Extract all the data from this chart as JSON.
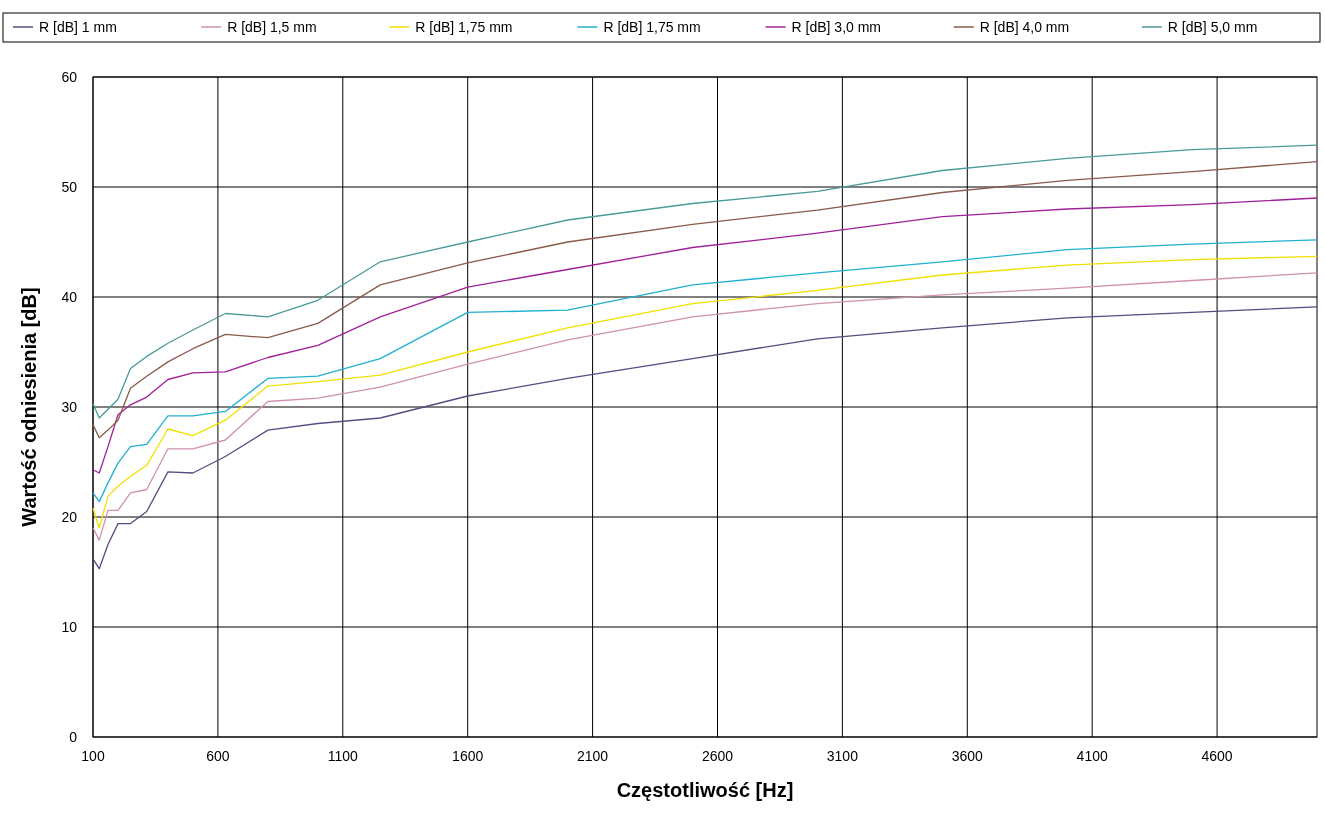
{
  "chart_data": {
    "type": "line",
    "xlabel": "Częstotliwość [Hz]",
    "ylabel": "Wartość odniesienia [dB]",
    "x": [
      100,
      125,
      160,
      200,
      250,
      315,
      400,
      500,
      630,
      800,
      1000,
      1250,
      1600,
      2000,
      2500,
      3000,
      3500,
      4000,
      4500,
      5000
    ],
    "xlim": [
      100,
      5000
    ],
    "xticks": [
      100,
      600,
      1100,
      1600,
      2100,
      2600,
      3100,
      3600,
      4100,
      4600
    ],
    "ylim": [
      0,
      60
    ],
    "yticks": [
      0,
      10,
      20,
      30,
      40,
      50,
      60
    ],
    "grid": true,
    "legend": "top",
    "marker": "none",
    "line_style": "solid",
    "series": [
      {
        "name": "R [dB] 1 mm",
        "color": "#5a4a80",
        "values": [
          16.2,
          15.3,
          17.5,
          19.4,
          19.4,
          20.5,
          24.1,
          24.0,
          25.5,
          27.9,
          28.5,
          29.0,
          31.0,
          32.6,
          34.4,
          36.2,
          37.2,
          38.1,
          38.6,
          39.1
        ]
      },
      {
        "name": "R [dB] 1,5 mm",
        "color": "#d090b0",
        "values": [
          19.0,
          17.9,
          20.6,
          20.6,
          22.2,
          22.5,
          26.2,
          26.2,
          27.0,
          30.5,
          30.8,
          31.8,
          33.9,
          36.1,
          38.2,
          39.4,
          40.2,
          40.8,
          41.5,
          42.2
        ]
      },
      {
        "name": "R [dB] 1,75 mm",
        "color": "#f0e000",
        "values": [
          20.8,
          19.0,
          21.9,
          22.8,
          23.7,
          24.7,
          28.0,
          27.4,
          28.8,
          31.9,
          32.3,
          32.9,
          35.0,
          37.2,
          39.4,
          40.6,
          42.0,
          42.9,
          43.4,
          43.7
        ]
      },
      {
        "name": "R [dB] 1,75 mm",
        "color": "#20b0d0",
        "values": [
          22.2,
          21.4,
          23.1,
          24.9,
          26.4,
          26.6,
          29.2,
          29.2,
          29.6,
          32.6,
          32.8,
          34.4,
          38.6,
          38.8,
          41.1,
          42.2,
          43.2,
          44.3,
          44.8,
          45.2
        ]
      },
      {
        "name": "R [dB] 3,0 mm",
        "color": "#a0209a",
        "values": [
          24.3,
          24.0,
          26.4,
          29.3,
          30.2,
          30.9,
          32.5,
          33.1,
          33.2,
          34.5,
          35.6,
          38.2,
          40.9,
          42.5,
          44.5,
          45.8,
          47.3,
          48.0,
          48.4,
          49.0
        ]
      },
      {
        "name": "R [dB] 4,0 mm",
        "color": "#8a5a4a",
        "values": [
          28.4,
          27.2,
          27.9,
          28.8,
          31.7,
          32.8,
          34.1,
          35.3,
          36.6,
          36.3,
          37.6,
          41.1,
          43.1,
          45.0,
          46.6,
          47.9,
          49.5,
          50.6,
          51.4,
          52.3
        ]
      },
      {
        "name": "R [dB] 5,0 mm",
        "color": "#4a9a9a",
        "values": [
          30.3,
          29.0,
          29.8,
          30.7,
          33.5,
          34.6,
          35.8,
          37.0,
          38.5,
          38.2,
          39.7,
          43.2,
          45.0,
          47.0,
          48.5,
          49.6,
          51.5,
          52.6,
          53.4,
          53.8
        ]
      }
    ]
  }
}
